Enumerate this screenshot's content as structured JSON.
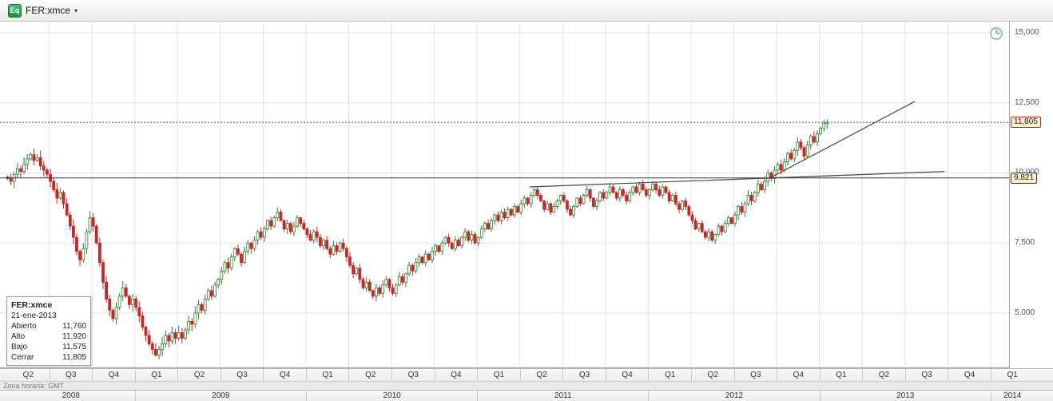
{
  "header": {
    "icon_label": "Eq",
    "symbol": "FER:xmce",
    "caret": "▾"
  },
  "status": {
    "timezone": "Zona horaria: GMT"
  },
  "tooltip": {
    "symbol": "FER:xmce",
    "date": "21-ene-2013",
    "rows": [
      {
        "label": "Abierto",
        "value": "11,760"
      },
      {
        "label": "Alto",
        "value": "11,920"
      },
      {
        "label": "Bajo",
        "value": "11,575"
      },
      {
        "label": "Cerrar",
        "value": "11,805"
      }
    ]
  },
  "colors": {
    "up": "#2e7d32",
    "up_fill": "#ffffff",
    "down": "#c62828",
    "grid": "#e3e3e3",
    "trendline": "#444444"
  },
  "chart_data": {
    "type": "candlestick",
    "symbol": "FER:xmce",
    "timeframe": "weekly",
    "grid": true,
    "ylim": [
      3030,
      15400
    ],
    "y_axis": {
      "ticks": [
        {
          "price": 15000,
          "label": "15,000"
        },
        {
          "price": 12500,
          "label": "12,500"
        },
        {
          "price": 10000,
          "label": "10,000"
        },
        {
          "price": 7500,
          "label": "7,500"
        },
        {
          "price": 5000,
          "label": "5,000"
        }
      ]
    },
    "x_axis": {
      "quarters": [
        "Q2",
        "Q3",
        "Q4",
        "Q1",
        "Q2",
        "Q3",
        "Q4",
        "Q1",
        "Q2",
        "Q3",
        "Q4",
        "Q1",
        "Q2",
        "Q3",
        "Q4",
        "Q1",
        "Q2",
        "Q3",
        "Q4",
        "Q1",
        "Q2",
        "Q3",
        "Q4",
        "Q1"
      ],
      "years": [
        {
          "label": "2008",
          "quarters": 3
        },
        {
          "label": "2009",
          "quarters": 4
        },
        {
          "label": "2010",
          "quarters": 4
        },
        {
          "label": "2011",
          "quarters": 4
        },
        {
          "label": "2012",
          "quarters": 4
        },
        {
          "label": "2013",
          "quarters": 4
        },
        {
          "label": "2014",
          "quarters": 1
        }
      ]
    },
    "first_open": 9850,
    "weekly_closes": [
      9800,
      9700,
      9950,
      10150,
      10050,
      10300,
      10500,
      10650,
      10450,
      10550,
      10250,
      10100,
      9950,
      9700,
      9400,
      9100,
      9300,
      8900,
      8500,
      8100,
      7700,
      7200,
      6900,
      7300,
      7900,
      8400,
      8100,
      7500,
      6800,
      6100,
      5500,
      5100,
      4800,
      5200,
      5600,
      5900,
      5600,
      5300,
      5500,
      5200,
      4900,
      4500,
      4200,
      3900,
      3700,
      3500,
      3700,
      3900,
      4200,
      4000,
      4300,
      4100,
      4300,
      4100,
      4400,
      4700,
      4600,
      5000,
      5300,
      5100,
      5500,
      5800,
      5600,
      6000,
      6200,
      6500,
      6800,
      6600,
      7000,
      7300,
      7100,
      6800,
      7200,
      7500,
      7300,
      7600,
      7900,
      7700,
      8000,
      8300,
      8100,
      8400,
      8600,
      8300,
      8000,
      8200,
      7900,
      8100,
      8400,
      8200,
      8000,
      7800,
      7600,
      7900,
      7700,
      7400,
      7600,
      7300,
      7100,
      7400,
      7200,
      7500,
      7300,
      7000,
      6700,
      6400,
      6600,
      6200,
      5900,
      6100,
      5800,
      5600,
      5900,
      5700,
      6000,
      6200,
      5900,
      5700,
      6000,
      6300,
      6100,
      6400,
      6700,
      6500,
      6800,
      7000,
      6800,
      7100,
      6900,
      7200,
      7400,
      7200,
      7500,
      7700,
      7500,
      7300,
      7600,
      7400,
      7700,
      7900,
      7600,
      7800,
      7500,
      7700,
      8000,
      8200,
      8000,
      8300,
      8500,
      8300,
      8600,
      8400,
      8700,
      8500,
      8800,
      8600,
      8900,
      9100,
      8900,
      9200,
      9400,
      9200,
      9000,
      8700,
      8900,
      8600,
      8800,
      9000,
      9200,
      9000,
      8700,
      8500,
      8800,
      9100,
      8900,
      9200,
      9400,
      9100,
      8800,
      9000,
      9300,
      9100,
      9300,
      9500,
      9300,
      9100,
      9400,
      9200,
      9000,
      9300,
      9500,
      9300,
      9600,
      9400,
      9200,
      9400,
      9600,
      9400,
      9200,
      9500,
      9300,
      9000,
      9200,
      8900,
      8700,
      9000,
      8800,
      8500,
      8300,
      8000,
      8200,
      7900,
      7700,
      7900,
      7600,
      7800,
      8100,
      7900,
      8200,
      8400,
      8200,
      8500,
      8800,
      8600,
      8900,
      9200,
      9000,
      9300,
      9600,
      9400,
      9700,
      10000,
      9800,
      10100,
      10300,
      10100,
      10400,
      10700,
      10500,
      10800,
      11100,
      10900,
      10600,
      11000,
      11300,
      11100,
      11400,
      11600,
      11760,
      11805
    ],
    "last_candle": {
      "date": "21-ene-2013",
      "open": 11760,
      "high": 11920,
      "low": 11575,
      "close": 11805
    },
    "wick_segments": [
      {
        "until_week": 60,
        "wick": 260
      },
      {
        "until_week": 130,
        "wick": 190
      },
      {
        "until_week": 221,
        "wick": 150
      },
      {
        "until_week": 250,
        "wick": 190
      }
    ],
    "price_tags": [
      {
        "price": 11805,
        "label": "11,805",
        "color": "#bb2222",
        "style": "dotted"
      },
      {
        "price": 9821,
        "label": "9,821",
        "color": "#333333",
        "style": "solid"
      }
    ],
    "trendlines": [
      {
        "from_week": 159,
        "from_price": 9500,
        "to_week": 285,
        "to_price": 10050
      },
      {
        "from_week": 232,
        "from_price": 9821,
        "to_week": 276,
        "to_price": 12550
      }
    ]
  }
}
